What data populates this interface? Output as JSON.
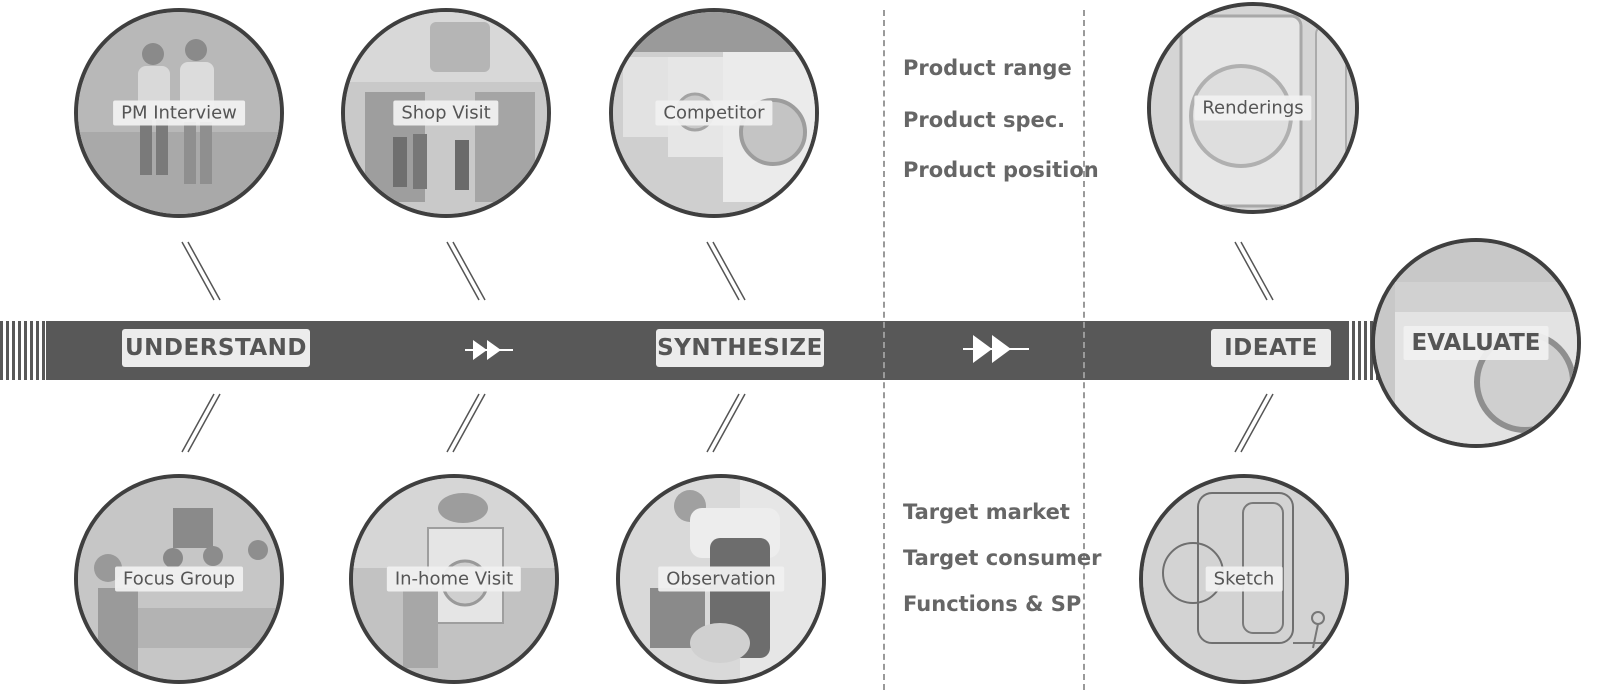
{
  "stages": {
    "understand": "UNDERSTAND",
    "synthesize": "SYNTHESIZE",
    "ideate": "IDEATE",
    "evaluate": "EVALUATE"
  },
  "methods_top": {
    "pm_interview": "PM Interview",
    "shop_visit": "Shop Visit",
    "competitor": "Competitor",
    "renderings": "Renderings"
  },
  "methods_bottom": {
    "focus_group": "Focus Group",
    "inhome_visit": "In-home Visit",
    "observation": "Observation",
    "sketch": "Sketch"
  },
  "outputs_top": [
    "Product range",
    "Product spec.",
    "Product position"
  ],
  "outputs_bottom": [
    "Target market",
    "Target consumer",
    "Functions & SP"
  ],
  "icons": [
    "double-arrow-icon",
    "double-arrow-icon"
  ]
}
